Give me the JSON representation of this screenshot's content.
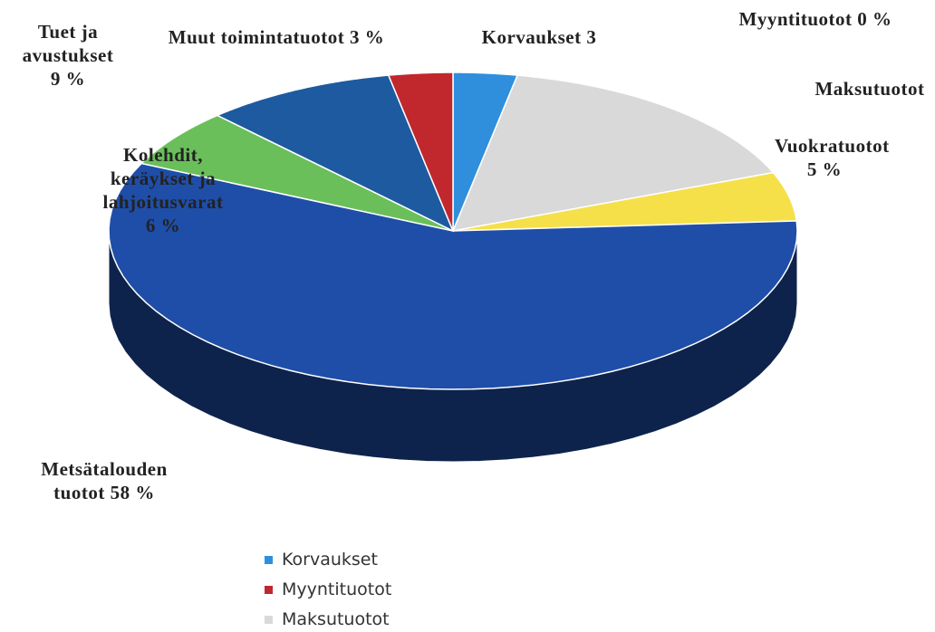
{
  "chart_data": {
    "type": "pie",
    "categories": [
      "Korvaukset",
      "Myyntituotot",
      "Maksutuotot",
      "Vuokratuotot",
      "Metsätalouden tuotot",
      "Kolehdit, keräykset ja lahjoitusvarat",
      "Tuet ja avustukset",
      "Muut toimintatuotot"
    ],
    "values": [
      3,
      0,
      16,
      5,
      58,
      6,
      9,
      3
    ],
    "value_labels": [
      "3",
      "0 %",
      null,
      "5 %",
      "58 %",
      "6 %",
      "9 %",
      "3 %"
    ],
    "colors": [
      "#2f8fdc",
      "#c0282e",
      "#d9d9d9",
      "#f5e04a",
      "#1f4ea8",
      "#6abf5a",
      "#1d5aa0",
      "#c0282e"
    ],
    "legend": "bottom"
  }
}
